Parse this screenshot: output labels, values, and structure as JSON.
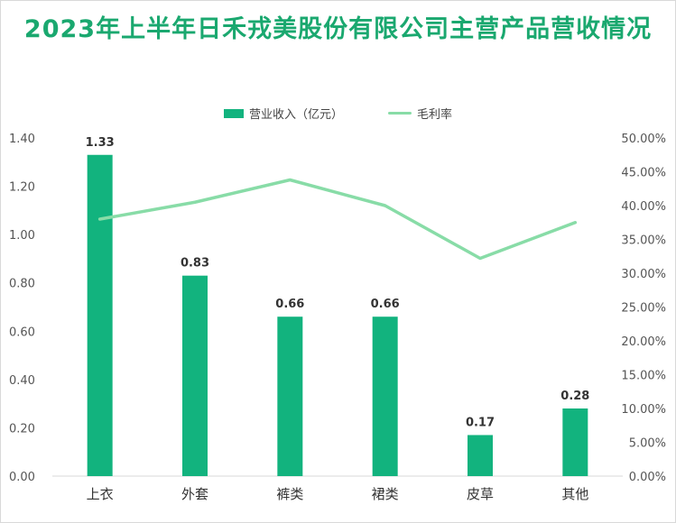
{
  "chart_data": {
    "type": "bar",
    "title": "2023年上半年日禾戎美股份有限公司主营产品营收情况",
    "categories": [
      "上衣",
      "外套",
      "裤类",
      "裙类",
      "皮草",
      "其他"
    ],
    "series": [
      {
        "name": "营业收入（亿元）",
        "type": "bar",
        "axis": "left",
        "values": [
          1.33,
          0.83,
          0.66,
          0.66,
          0.17,
          0.28
        ],
        "labels": [
          "1.33",
          "0.83",
          "0.66",
          "0.66",
          "0.17",
          "0.28"
        ]
      },
      {
        "name": "毛利率",
        "type": "line",
        "axis": "right",
        "values": [
          38.0,
          40.5,
          43.8,
          40.0,
          32.2,
          37.5
        ]
      }
    ],
    "y_left": {
      "min": 0,
      "max": 1.4,
      "ticks": [
        "0.00",
        "0.20",
        "0.40",
        "0.60",
        "0.80",
        "1.00",
        "1.20",
        "1.40"
      ]
    },
    "y_right": {
      "min": 0,
      "max": 50,
      "ticks": [
        "0.00%",
        "5.00%",
        "10.00%",
        "15.00%",
        "20.00%",
        "25.00%",
        "30.00%",
        "35.00%",
        "40.00%",
        "45.00%",
        "50.00%"
      ]
    },
    "legend_position": "top",
    "grid": false,
    "colors": {
      "bar": "#12b37e",
      "line": "#88dca7",
      "title": "#1aa86f"
    }
  }
}
